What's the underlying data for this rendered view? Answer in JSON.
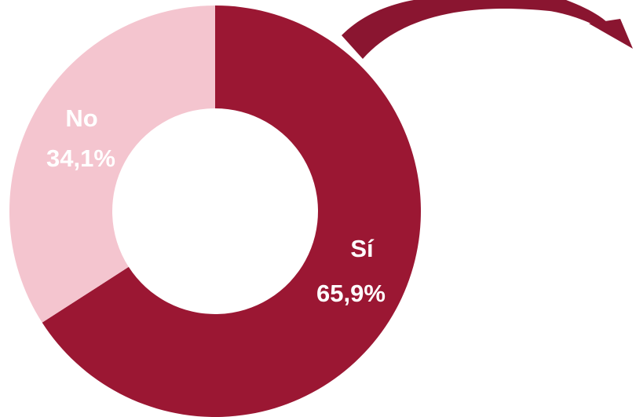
{
  "chart_data": {
    "type": "donut",
    "title": "",
    "start_angle": "12 o'clock",
    "direction": "clockwise",
    "slices": [
      {
        "name": "Sí",
        "value": 65.9,
        "display": "65,9%",
        "color": "#9b1733"
      },
      {
        "name": "No",
        "value": 34.1,
        "display": "34,1%",
        "color": "#f4c5cf"
      }
    ],
    "legend": "none"
  },
  "decor": {
    "arrow_color": "#8a1530"
  }
}
